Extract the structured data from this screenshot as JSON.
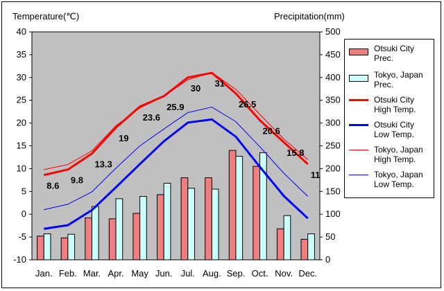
{
  "chart_data": {
    "type": "bar+line",
    "categories": [
      "Jan.",
      "Feb.",
      "Mar.",
      "Apr.",
      "May",
      "Jun.",
      "Jul.",
      "Aug.",
      "Sep.",
      "Oct.",
      "Nov.",
      "Dec."
    ],
    "left_axis": {
      "label": "Temperature(℃)",
      "ylim": [
        -10,
        40
      ],
      "ticks": [
        -10,
        -5,
        0,
        5,
        10,
        15,
        20,
        25,
        30,
        35,
        40
      ]
    },
    "right_axis": {
      "label": "Precipitation(mm)",
      "ylim": [
        0,
        500
      ],
      "ticks": [
        0,
        50,
        100,
        150,
        200,
        250,
        300,
        350,
        400,
        450,
        500
      ]
    },
    "grid": false,
    "legend_position": "right",
    "bar_series": [
      {
        "name": "Otsuki City\nPrec.",
        "color": "#f08080",
        "axis": "right",
        "values": [
          52,
          48,
          92,
          90,
          102,
          143,
          180,
          180,
          240,
          205,
          68,
          45
        ]
      },
      {
        "name": "Tokyo, Japan\nPrec.",
        "color": "#ccffff",
        "axis": "right",
        "values": [
          57,
          56,
          117,
          134,
          139,
          168,
          157,
          155,
          227,
          235,
          97,
          57
        ]
      }
    ],
    "line_series": [
      {
        "name": "Otsuki City\nHigh Temp.",
        "color": "#ff0000",
        "width": 3,
        "axis": "left",
        "values": [
          8.6,
          9.8,
          13.3,
          19,
          23.6,
          25.9,
          30,
          31,
          26.5,
          20.6,
          15.8,
          11
        ],
        "data_labels": [
          "8.6",
          "9.8",
          "13.3",
          "19",
          "23.6",
          "25.9",
          "30",
          "31",
          "26.5",
          "20.6",
          "15.8",
          "11"
        ]
      },
      {
        "name": "Otsuki City\nLow Temp.",
        "color": "#0000ff",
        "width": 3,
        "axis": "left",
        "values": [
          -3.2,
          -2.4,
          0.9,
          5.9,
          11,
          16,
          20.1,
          20.8,
          17,
          10.4,
          4,
          -0.9
        ]
      },
      {
        "name": "Tokyo, Japan\nHigh Temp.",
        "color": "#ff0000",
        "width": 1,
        "axis": "left",
        "values": [
          9.8,
          10.9,
          13.9,
          19.4,
          23.3,
          25.9,
          29.5,
          31.1,
          27.4,
          21.9,
          16.5,
          12
        ]
      },
      {
        "name": "Tokyo, Japan\nLow Temp.",
        "color": "#0000ff",
        "width": 1,
        "axis": "left",
        "values": [
          1,
          2.2,
          4.9,
          10.1,
          15,
          18.7,
          22.3,
          23.5,
          20.3,
          14.8,
          9,
          3.9
        ]
      }
    ]
  }
}
